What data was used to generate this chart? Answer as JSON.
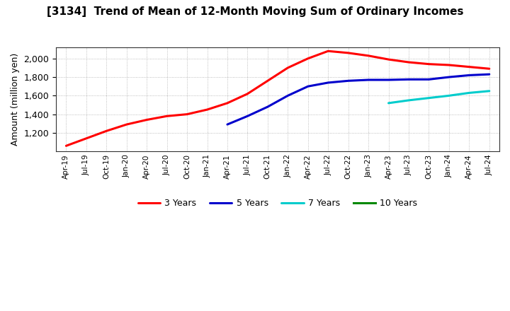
{
  "title": "[3134]  Trend of Mean of 12-Month Moving Sum of Ordinary Incomes",
  "ylabel": "Amount (million yen)",
  "background_color": "#ffffff",
  "grid_color": "#888888",
  "series": {
    "3 Years": {
      "color": "#ff0000",
      "x_indices": [
        0,
        1,
        2,
        3,
        4,
        5,
        6,
        7,
        8,
        9,
        10,
        11,
        12,
        13,
        14,
        15,
        16,
        17,
        18,
        19,
        20,
        21
      ],
      "values": [
        1060,
        1140,
        1220,
        1290,
        1340,
        1380,
        1400,
        1450,
        1520,
        1620,
        1760,
        1900,
        2000,
        2080,
        2060,
        2030,
        1990,
        1960,
        1940,
        1930,
        1910,
        1890
      ]
    },
    "5 Years": {
      "color": "#0000cc",
      "x_indices": [
        8,
        9,
        10,
        11,
        12,
        13,
        14,
        15,
        16,
        17,
        18,
        19,
        20,
        21
      ],
      "values": [
        1290,
        1380,
        1480,
        1600,
        1700,
        1740,
        1760,
        1770,
        1770,
        1775,
        1775,
        1800,
        1820,
        1830
      ]
    },
    "7 Years": {
      "color": "#00cccc",
      "x_indices": [
        16,
        17,
        18,
        19,
        20,
        21
      ],
      "values": [
        1520,
        1550,
        1575,
        1600,
        1630,
        1650
      ]
    },
    "10 Years": {
      "color": "#008800",
      "x_indices": [],
      "values": []
    }
  },
  "ylim": [
    1000,
    2120
  ],
  "yticks": [
    1200,
    1400,
    1600,
    1800,
    2000
  ],
  "xtick_labels": [
    "Apr-19",
    "Jul-19",
    "Oct-19",
    "Jan-20",
    "Apr-20",
    "Jul-20",
    "Oct-20",
    "Jan-21",
    "Apr-21",
    "Jul-21",
    "Oct-21",
    "Jan-22",
    "Apr-22",
    "Jul-22",
    "Oct-22",
    "Jan-23",
    "Apr-23",
    "Jul-23",
    "Oct-23",
    "Jan-24",
    "Apr-24",
    "Jul-24"
  ],
  "legend_order": [
    "3 Years",
    "5 Years",
    "7 Years",
    "10 Years"
  ],
  "linewidth": 2.2
}
